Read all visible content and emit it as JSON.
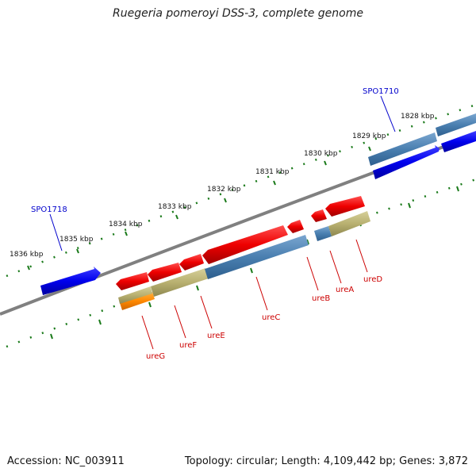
{
  "title": "Ruegeria pomeroyi DSS-3, complete genome",
  "footer": {
    "accession": "Accession: NC_003911",
    "summary": "Topology: circular; Length: 4,109,442 bp; Genes: 3,872"
  },
  "scale_labels": [
    "1828 kbp",
    "1829 kbp",
    "1830 kbp",
    "1831 kbp",
    "1832 kbp",
    "1833 kbp",
    "1834 kbp",
    "1835 kbp",
    "1836 kbp"
  ],
  "locus_labels": [
    "SPO1710",
    "SPO1718"
  ],
  "gene_labels": [
    "ureG",
    "ureF",
    "ureE",
    "ureC",
    "ureB",
    "ureA",
    "ureD"
  ],
  "colors": {
    "forward_gene": "#0000ee",
    "reverse_gene": "#ee0000",
    "backbone": "#808080",
    "tick": "#1a7a1a",
    "feature_steel": "#4a7fb0",
    "feature_khaki": "#b8b070",
    "feature_orange": "#ff8800"
  }
}
